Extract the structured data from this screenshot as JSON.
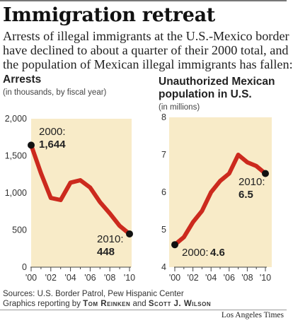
{
  "title": "Immigration retreat",
  "dek": [
    "Arrests of illegal immigrants at the U.S.-Mexico border",
    "have declined to about a quarter of their 2000 total, and",
    "the population of Mexican illegal immigrants has fallen:"
  ],
  "colors": {
    "background": "#f8ebc8",
    "line": "#cc2a1e",
    "marker": "#111111",
    "text": "#222222"
  },
  "chart_data": [
    {
      "type": "line",
      "title": "Arrests",
      "subtitle": "(in thousands, by fiscal year)",
      "x_tick_labels": [
        "'00",
        "'02",
        "'04",
        "'06",
        "'08",
        "'10"
      ],
      "y_tick_labels": [
        "2,000",
        "1,500",
        "1,000",
        "500",
        "0"
      ],
      "ylim": [
        0,
        2000
      ],
      "xlim": [
        2000,
        2010
      ],
      "x": [
        2000,
        2001,
        2002,
        2003,
        2004,
        2005,
        2006,
        2007,
        2008,
        2009,
        2010
      ],
      "values": [
        1644,
        1266,
        932,
        905,
        1139,
        1171,
        1072,
        877,
        724,
        556,
        448
      ],
      "grid": false,
      "annotations": [
        {
          "label": "2000:",
          "value": "1,644"
        },
        {
          "label": "2010:",
          "value": "448"
        }
      ]
    },
    {
      "type": "line",
      "title_lines": [
        "Unauthorized Mexican",
        "population in U.S."
      ],
      "subtitle": "(in millions)",
      "x_tick_labels": [
        "'00",
        "'02",
        "'04",
        "'06",
        "'08",
        "'10"
      ],
      "y_tick_labels": [
        "8",
        "7",
        "6",
        "5",
        "4"
      ],
      "ylim": [
        4,
        8
      ],
      "xlim": [
        2000,
        2010
      ],
      "x": [
        2000,
        2001,
        2002,
        2003,
        2004,
        2005,
        2006,
        2007,
        2008,
        2009,
        2010
      ],
      "values": [
        4.6,
        4.8,
        5.2,
        5.5,
        6.0,
        6.3,
        6.5,
        7.0,
        6.8,
        6.7,
        6.5
      ],
      "grid": false,
      "annotations": [
        {
          "label": "2000:",
          "value": "4.6"
        },
        {
          "label": "2010:",
          "value": "6.5"
        }
      ]
    }
  ],
  "sources": "Sources: U.S. Border Patrol, Pew Hispanic Center",
  "credits": {
    "prefix": "Graphics reporting by",
    "author1": "Tom Reinken",
    "and": "and",
    "author2": "Scott J. Wilson"
  },
  "publisher": "Los Angeles Times"
}
